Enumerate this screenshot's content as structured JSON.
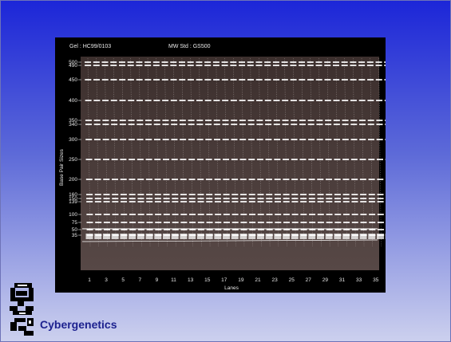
{
  "header": {
    "gel": "Gel : HC99/0103",
    "mw_std": "MW Std : GS500"
  },
  "axes": {
    "ylabel": "Base Pair Sizes",
    "xlabel": "Lanes",
    "y_ticks": [
      "500",
      "490",
      "450",
      "400",
      "350",
      "340",
      "300",
      "250",
      "200",
      "160",
      "150",
      "139",
      "100",
      "75",
      "50",
      "35"
    ],
    "x_ticks": [
      "1",
      "3",
      "5",
      "7",
      "9",
      "11",
      "13",
      "15",
      "17",
      "19",
      "21",
      "23",
      "25",
      "27",
      "29",
      "31",
      "33",
      "35"
    ]
  },
  "brand": {
    "name": "Cybergenetics"
  },
  "colors": {
    "background_top": "#1c26d8",
    "brand": "#1d228f",
    "gel_band": "#ffffff"
  },
  "icons": {
    "logo": "cybergenetics-logo-icon"
  }
}
